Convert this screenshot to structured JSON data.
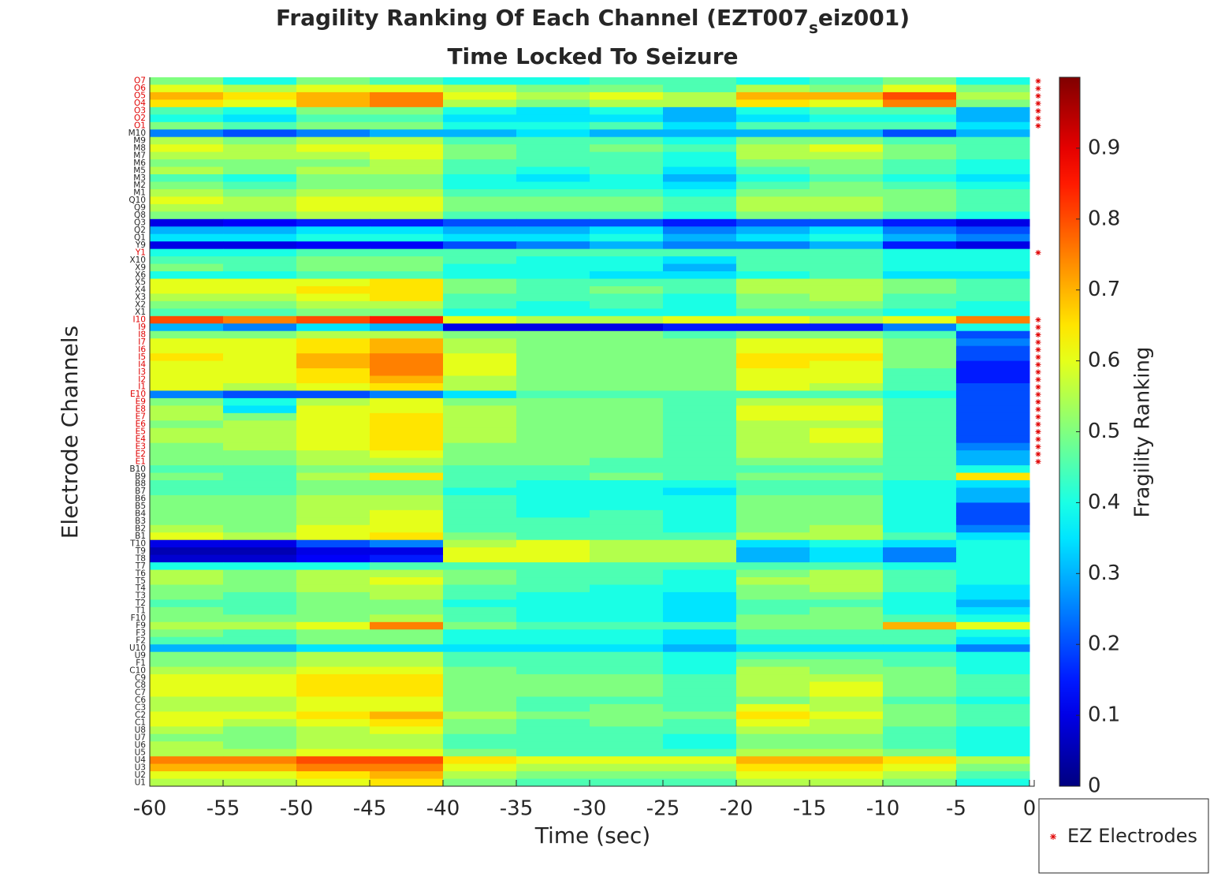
{
  "chart_data": {
    "type": "heatmap",
    "title": [
      "Fragility Ranking Of Each Channel (EZT007",
      "s",
      "eiz001)"
    ],
    "subtitle": "Time Locked To Seizure",
    "xlabel": "Time (sec)",
    "ylabel": "Electrode Channels",
    "colorbar_label": "Fragility Ranking",
    "legend_label": "EZ Electrodes",
    "colormap": "jet",
    "ez_color": "#e00000",
    "xlim": [
      -60,
      0
    ],
    "xticks": [
      -60,
      -55,
      -50,
      -45,
      -40,
      -35,
      -30,
      -25,
      -20,
      -15,
      -10,
      -5,
      0
    ],
    "x_bins": [
      -60,
      -55,
      -50,
      -45,
      -40,
      -35,
      -30,
      -25,
      -20,
      -15,
      -10,
      -5,
      0
    ],
    "zlim": [
      0,
      1
    ],
    "zticks": [
      0,
      0.1,
      0.2,
      0.3,
      0.4,
      0.5,
      0.6,
      0.7,
      0.8,
      0.9
    ],
    "y_categories": [
      "O7",
      "O6",
      "O5",
      "O4",
      "O3",
      "O2",
      "O1",
      "M10",
      "M9",
      "M8",
      "M7",
      "M6",
      "M5",
      "M3",
      "M2",
      "M1",
      "Q10",
      "Q9",
      "Q8",
      "Q3",
      "Q2",
      "Q1",
      "Y9",
      "Y1",
      "X10",
      "X9",
      "X6",
      "X5",
      "X4",
      "X3",
      "X2",
      "X1",
      "I10",
      "I9",
      "I8",
      "I7",
      "I6",
      "I5",
      "I4",
      "I3",
      "I2",
      "I1",
      "E10",
      "E9",
      "E8",
      "E7",
      "E6",
      "E5",
      "E4",
      "E3",
      "E2",
      "E1",
      "B10",
      "B9",
      "B8",
      "B7",
      "B6",
      "B5",
      "B4",
      "B3",
      "B2",
      "B1",
      "T10",
      "T9",
      "T8",
      "T7",
      "T6",
      "T5",
      "T4",
      "T3",
      "T2",
      "T1",
      "F10",
      "F9",
      "F3",
      "F2",
      "U10",
      "U9",
      "F1",
      "C10",
      "C9",
      "C8",
      "C7",
      "C6",
      "C3",
      "C2",
      "C1",
      "U8",
      "U7",
      "U6",
      "U5",
      "U4",
      "U3",
      "U2",
      "U1"
    ],
    "ez_electrodes": [
      "O7",
      "O6",
      "O5",
      "O4",
      "O3",
      "O2",
      "O1",
      "Y1",
      "I10",
      "I9",
      "I8",
      "I7",
      "I6",
      "I5",
      "I4",
      "I3",
      "I2",
      "I1",
      "E10",
      "E9",
      "E8",
      "E7",
      "E6",
      "E5",
      "E4",
      "E3",
      "E2",
      "E1"
    ],
    "z": [
      [
        0.5,
        0.4,
        0.5,
        0.45,
        0.4,
        0.4,
        0.45,
        0.45,
        0.4,
        0.45,
        0.5,
        0.4
      ],
      [
        0.6,
        0.55,
        0.6,
        0.6,
        0.55,
        0.5,
        0.5,
        0.45,
        0.55,
        0.5,
        0.6,
        0.5
      ],
      [
        0.7,
        0.65,
        0.7,
        0.75,
        0.6,
        0.55,
        0.6,
        0.55,
        0.7,
        0.7,
        0.8,
        0.55
      ],
      [
        0.65,
        0.6,
        0.7,
        0.75,
        0.55,
        0.5,
        0.55,
        0.55,
        0.65,
        0.6,
        0.75,
        0.5
      ],
      [
        0.45,
        0.4,
        0.5,
        0.5,
        0.4,
        0.35,
        0.4,
        0.3,
        0.4,
        0.45,
        0.45,
        0.3
      ],
      [
        0.4,
        0.35,
        0.45,
        0.45,
        0.35,
        0.35,
        0.35,
        0.3,
        0.35,
        0.4,
        0.4,
        0.3
      ],
      [
        0.5,
        0.45,
        0.5,
        0.5,
        0.4,
        0.4,
        0.45,
        0.35,
        0.45,
        0.45,
        0.45,
        0.35
      ],
      [
        0.25,
        0.2,
        0.25,
        0.3,
        0.3,
        0.35,
        0.3,
        0.3,
        0.3,
        0.3,
        0.2,
        0.3
      ],
      [
        0.55,
        0.5,
        0.55,
        0.55,
        0.45,
        0.45,
        0.45,
        0.4,
        0.5,
        0.5,
        0.45,
        0.45
      ],
      [
        0.6,
        0.55,
        0.6,
        0.6,
        0.5,
        0.45,
        0.5,
        0.45,
        0.55,
        0.6,
        0.5,
        0.45
      ],
      [
        0.55,
        0.55,
        0.55,
        0.6,
        0.5,
        0.45,
        0.45,
        0.4,
        0.55,
        0.55,
        0.5,
        0.45
      ],
      [
        0.5,
        0.5,
        0.5,
        0.55,
        0.45,
        0.45,
        0.45,
        0.4,
        0.5,
        0.5,
        0.45,
        0.4
      ],
      [
        0.55,
        0.5,
        0.55,
        0.55,
        0.45,
        0.4,
        0.45,
        0.35,
        0.45,
        0.5,
        0.45,
        0.4
      ],
      [
        0.45,
        0.4,
        0.5,
        0.5,
        0.4,
        0.35,
        0.4,
        0.3,
        0.4,
        0.45,
        0.4,
        0.35
      ],
      [
        0.5,
        0.45,
        0.5,
        0.5,
        0.4,
        0.4,
        0.4,
        0.35,
        0.45,
        0.5,
        0.45,
        0.4
      ],
      [
        0.55,
        0.5,
        0.55,
        0.55,
        0.45,
        0.45,
        0.45,
        0.4,
        0.5,
        0.5,
        0.5,
        0.45
      ],
      [
        0.6,
        0.55,
        0.6,
        0.6,
        0.5,
        0.5,
        0.5,
        0.45,
        0.55,
        0.55,
        0.5,
        0.45
      ],
      [
        0.55,
        0.55,
        0.6,
        0.6,
        0.5,
        0.5,
        0.5,
        0.45,
        0.55,
        0.55,
        0.5,
        0.45
      ],
      [
        0.5,
        0.5,
        0.55,
        0.55,
        0.45,
        0.45,
        0.45,
        0.4,
        0.5,
        0.5,
        0.45,
        0.4
      ],
      [
        0.1,
        0.12,
        0.15,
        0.15,
        0.2,
        0.2,
        0.2,
        0.15,
        0.2,
        0.2,
        0.15,
        0.1
      ],
      [
        0.3,
        0.3,
        0.35,
        0.35,
        0.3,
        0.3,
        0.35,
        0.25,
        0.3,
        0.35,
        0.25,
        0.2
      ],
      [
        0.35,
        0.35,
        0.4,
        0.4,
        0.35,
        0.35,
        0.4,
        0.3,
        0.35,
        0.4,
        0.3,
        0.25
      ],
      [
        0.1,
        0.1,
        0.12,
        0.12,
        0.2,
        0.25,
        0.3,
        0.25,
        0.25,
        0.3,
        0.15,
        0.1
      ],
      [
        0.4,
        0.4,
        0.45,
        0.45,
        0.45,
        0.45,
        0.45,
        0.45,
        0.45,
        0.45,
        0.4,
        0.4
      ],
      [
        0.45,
        0.45,
        0.5,
        0.5,
        0.45,
        0.4,
        0.4,
        0.35,
        0.45,
        0.45,
        0.4,
        0.4
      ],
      [
        0.5,
        0.45,
        0.5,
        0.5,
        0.4,
        0.4,
        0.4,
        0.3,
        0.45,
        0.45,
        0.4,
        0.4
      ],
      [
        0.4,
        0.4,
        0.45,
        0.45,
        0.4,
        0.4,
        0.35,
        0.35,
        0.4,
        0.45,
        0.35,
        0.35
      ],
      [
        0.6,
        0.6,
        0.6,
        0.65,
        0.5,
        0.45,
        0.45,
        0.45,
        0.55,
        0.55,
        0.5,
        0.45
      ],
      [
        0.6,
        0.6,
        0.65,
        0.65,
        0.5,
        0.45,
        0.5,
        0.45,
        0.55,
        0.55,
        0.5,
        0.45
      ],
      [
        0.55,
        0.55,
        0.6,
        0.65,
        0.45,
        0.45,
        0.45,
        0.4,
        0.5,
        0.55,
        0.45,
        0.45
      ],
      [
        0.5,
        0.5,
        0.55,
        0.55,
        0.45,
        0.4,
        0.45,
        0.4,
        0.5,
        0.5,
        0.45,
        0.4
      ],
      [
        0.45,
        0.45,
        0.5,
        0.5,
        0.4,
        0.4,
        0.4,
        0.4,
        0.45,
        0.45,
        0.4,
        0.4
      ],
      [
        0.8,
        0.75,
        0.8,
        0.85,
        0.6,
        0.55,
        0.55,
        0.6,
        0.6,
        0.55,
        0.6,
        0.75
      ],
      [
        0.3,
        0.25,
        0.35,
        0.3,
        0.1,
        0.1,
        0.1,
        0.15,
        0.15,
        0.15,
        0.25,
        0.4
      ],
      [
        0.5,
        0.5,
        0.55,
        0.55,
        0.5,
        0.5,
        0.5,
        0.45,
        0.5,
        0.5,
        0.45,
        0.2
      ],
      [
        0.6,
        0.6,
        0.65,
        0.7,
        0.55,
        0.5,
        0.5,
        0.5,
        0.6,
        0.6,
        0.5,
        0.25
      ],
      [
        0.6,
        0.6,
        0.65,
        0.7,
        0.55,
        0.5,
        0.5,
        0.5,
        0.6,
        0.6,
        0.5,
        0.2
      ],
      [
        0.65,
        0.6,
        0.7,
        0.75,
        0.6,
        0.5,
        0.5,
        0.5,
        0.65,
        0.65,
        0.5,
        0.2
      ],
      [
        0.6,
        0.6,
        0.7,
        0.75,
        0.6,
        0.5,
        0.5,
        0.5,
        0.65,
        0.6,
        0.5,
        0.15
      ],
      [
        0.6,
        0.6,
        0.65,
        0.75,
        0.6,
        0.5,
        0.5,
        0.5,
        0.6,
        0.6,
        0.45,
        0.15
      ],
      [
        0.6,
        0.6,
        0.65,
        0.7,
        0.55,
        0.5,
        0.5,
        0.5,
        0.6,
        0.6,
        0.45,
        0.15
      ],
      [
        0.6,
        0.55,
        0.6,
        0.65,
        0.55,
        0.5,
        0.5,
        0.5,
        0.6,
        0.55,
        0.45,
        0.2
      ],
      [
        0.25,
        0.2,
        0.2,
        0.25,
        0.35,
        0.45,
        0.45,
        0.45,
        0.45,
        0.45,
        0.4,
        0.2
      ],
      [
        0.5,
        0.4,
        0.55,
        0.6,
        0.5,
        0.5,
        0.5,
        0.45,
        0.55,
        0.55,
        0.45,
        0.2
      ],
      [
        0.55,
        0.35,
        0.6,
        0.6,
        0.55,
        0.5,
        0.5,
        0.45,
        0.6,
        0.6,
        0.45,
        0.2
      ],
      [
        0.55,
        0.5,
        0.6,
        0.65,
        0.55,
        0.5,
        0.5,
        0.45,
        0.6,
        0.6,
        0.45,
        0.2
      ],
      [
        0.5,
        0.55,
        0.6,
        0.65,
        0.55,
        0.5,
        0.5,
        0.45,
        0.55,
        0.55,
        0.45,
        0.2
      ],
      [
        0.55,
        0.55,
        0.6,
        0.65,
        0.55,
        0.5,
        0.5,
        0.45,
        0.55,
        0.6,
        0.45,
        0.2
      ],
      [
        0.55,
        0.55,
        0.6,
        0.65,
        0.55,
        0.5,
        0.5,
        0.45,
        0.55,
        0.6,
        0.45,
        0.2
      ],
      [
        0.5,
        0.55,
        0.6,
        0.65,
        0.5,
        0.5,
        0.5,
        0.45,
        0.55,
        0.55,
        0.45,
        0.25
      ],
      [
        0.5,
        0.5,
        0.55,
        0.6,
        0.5,
        0.5,
        0.5,
        0.45,
        0.55,
        0.55,
        0.45,
        0.3
      ],
      [
        0.5,
        0.5,
        0.55,
        0.55,
        0.5,
        0.5,
        0.45,
        0.45,
        0.5,
        0.5,
        0.45,
        0.3
      ],
      [
        0.45,
        0.45,
        0.5,
        0.5,
        0.45,
        0.45,
        0.45,
        0.45,
        0.45,
        0.45,
        0.45,
        0.4
      ],
      [
        0.5,
        0.45,
        0.55,
        0.65,
        0.45,
        0.45,
        0.5,
        0.45,
        0.5,
        0.5,
        0.45,
        0.65
      ],
      [
        0.45,
        0.45,
        0.5,
        0.5,
        0.45,
        0.4,
        0.4,
        0.4,
        0.45,
        0.45,
        0.4,
        0.35
      ],
      [
        0.45,
        0.45,
        0.5,
        0.5,
        0.4,
        0.4,
        0.4,
        0.35,
        0.45,
        0.45,
        0.4,
        0.3
      ],
      [
        0.5,
        0.5,
        0.55,
        0.55,
        0.45,
        0.4,
        0.4,
        0.4,
        0.5,
        0.5,
        0.4,
        0.3
      ],
      [
        0.5,
        0.5,
        0.55,
        0.55,
        0.45,
        0.4,
        0.4,
        0.4,
        0.5,
        0.5,
        0.4,
        0.2
      ],
      [
        0.5,
        0.5,
        0.55,
        0.6,
        0.45,
        0.4,
        0.45,
        0.4,
        0.5,
        0.5,
        0.4,
        0.2
      ],
      [
        0.5,
        0.5,
        0.55,
        0.6,
        0.45,
        0.45,
        0.45,
        0.4,
        0.5,
        0.5,
        0.4,
        0.2
      ],
      [
        0.55,
        0.5,
        0.6,
        0.6,
        0.45,
        0.45,
        0.45,
        0.4,
        0.5,
        0.55,
        0.4,
        0.25
      ],
      [
        0.6,
        0.55,
        0.6,
        0.65,
        0.5,
        0.45,
        0.45,
        0.45,
        0.55,
        0.55,
        0.45,
        0.35
      ],
      [
        0.1,
        0.1,
        0.2,
        0.25,
        0.55,
        0.6,
        0.55,
        0.55,
        0.35,
        0.4,
        0.35,
        0.4
      ],
      [
        0.05,
        0.05,
        0.1,
        0.1,
        0.6,
        0.6,
        0.55,
        0.55,
        0.3,
        0.35,
        0.25,
        0.4
      ],
      [
        0.08,
        0.08,
        0.12,
        0.15,
        0.6,
        0.6,
        0.55,
        0.55,
        0.3,
        0.35,
        0.25,
        0.4
      ],
      [
        0.4,
        0.4,
        0.4,
        0.45,
        0.45,
        0.45,
        0.45,
        0.45,
        0.45,
        0.45,
        0.4,
        0.4
      ],
      [
        0.55,
        0.5,
        0.55,
        0.55,
        0.5,
        0.45,
        0.45,
        0.4,
        0.5,
        0.55,
        0.45,
        0.4
      ],
      [
        0.55,
        0.5,
        0.55,
        0.6,
        0.5,
        0.45,
        0.45,
        0.4,
        0.55,
        0.55,
        0.45,
        0.4
      ],
      [
        0.5,
        0.5,
        0.55,
        0.55,
        0.45,
        0.45,
        0.4,
        0.4,
        0.5,
        0.55,
        0.45,
        0.35
      ],
      [
        0.5,
        0.45,
        0.5,
        0.55,
        0.45,
        0.4,
        0.4,
        0.35,
        0.5,
        0.5,
        0.4,
        0.35
      ],
      [
        0.45,
        0.45,
        0.5,
        0.5,
        0.4,
        0.4,
        0.4,
        0.35,
        0.45,
        0.45,
        0.4,
        0.3
      ],
      [
        0.5,
        0.45,
        0.5,
        0.5,
        0.45,
        0.4,
        0.4,
        0.35,
        0.45,
        0.5,
        0.4,
        0.35
      ],
      [
        0.5,
        0.5,
        0.5,
        0.55,
        0.45,
        0.4,
        0.4,
        0.35,
        0.5,
        0.5,
        0.45,
        0.4
      ],
      [
        0.55,
        0.55,
        0.6,
        0.75,
        0.5,
        0.45,
        0.45,
        0.45,
        0.5,
        0.5,
        0.7,
        0.6
      ],
      [
        0.5,
        0.45,
        0.5,
        0.5,
        0.4,
        0.4,
        0.4,
        0.35,
        0.45,
        0.45,
        0.45,
        0.4
      ],
      [
        0.45,
        0.45,
        0.5,
        0.5,
        0.4,
        0.4,
        0.4,
        0.35,
        0.45,
        0.45,
        0.45,
        0.35
      ],
      [
        0.3,
        0.3,
        0.35,
        0.35,
        0.35,
        0.35,
        0.35,
        0.3,
        0.35,
        0.35,
        0.35,
        0.25
      ],
      [
        0.5,
        0.5,
        0.55,
        0.55,
        0.45,
        0.45,
        0.45,
        0.4,
        0.45,
        0.45,
        0.45,
        0.4
      ],
      [
        0.5,
        0.5,
        0.55,
        0.55,
        0.45,
        0.45,
        0.45,
        0.4,
        0.5,
        0.5,
        0.45,
        0.4
      ],
      [
        0.55,
        0.55,
        0.6,
        0.6,
        0.5,
        0.45,
        0.45,
        0.4,
        0.55,
        0.5,
        0.5,
        0.4
      ],
      [
        0.6,
        0.6,
        0.65,
        0.65,
        0.5,
        0.5,
        0.5,
        0.45,
        0.55,
        0.55,
        0.5,
        0.45
      ],
      [
        0.6,
        0.6,
        0.65,
        0.65,
        0.5,
        0.5,
        0.5,
        0.45,
        0.55,
        0.6,
        0.5,
        0.45
      ],
      [
        0.6,
        0.6,
        0.65,
        0.65,
        0.5,
        0.5,
        0.5,
        0.45,
        0.55,
        0.6,
        0.5,
        0.45
      ],
      [
        0.55,
        0.55,
        0.6,
        0.6,
        0.5,
        0.45,
        0.45,
        0.45,
        0.5,
        0.55,
        0.45,
        0.4
      ],
      [
        0.55,
        0.55,
        0.6,
        0.6,
        0.5,
        0.45,
        0.5,
        0.45,
        0.6,
        0.55,
        0.5,
        0.45
      ],
      [
        0.6,
        0.6,
        0.65,
        0.7,
        0.55,
        0.5,
        0.5,
        0.5,
        0.65,
        0.6,
        0.5,
        0.45
      ],
      [
        0.6,
        0.55,
        0.6,
        0.65,
        0.5,
        0.45,
        0.5,
        0.45,
        0.6,
        0.55,
        0.5,
        0.45
      ],
      [
        0.55,
        0.5,
        0.55,
        0.6,
        0.5,
        0.45,
        0.45,
        0.45,
        0.55,
        0.55,
        0.45,
        0.4
      ],
      [
        0.5,
        0.5,
        0.55,
        0.55,
        0.45,
        0.45,
        0.45,
        0.4,
        0.5,
        0.5,
        0.45,
        0.4
      ],
      [
        0.55,
        0.5,
        0.55,
        0.55,
        0.45,
        0.45,
        0.45,
        0.4,
        0.5,
        0.5,
        0.45,
        0.4
      ],
      [
        0.55,
        0.55,
        0.6,
        0.6,
        0.5,
        0.45,
        0.45,
        0.45,
        0.55,
        0.55,
        0.5,
        0.4
      ],
      [
        0.75,
        0.75,
        0.8,
        0.8,
        0.65,
        0.6,
        0.6,
        0.6,
        0.7,
        0.7,
        0.65,
        0.55
      ],
      [
        0.7,
        0.7,
        0.75,
        0.75,
        0.6,
        0.55,
        0.55,
        0.55,
        0.65,
        0.65,
        0.6,
        0.5
      ],
      [
        0.6,
        0.6,
        0.65,
        0.7,
        0.55,
        0.5,
        0.5,
        0.5,
        0.6,
        0.6,
        0.55,
        0.45
      ],
      [
        0.55,
        0.55,
        0.6,
        0.65,
        0.5,
        0.45,
        0.45,
        0.45,
        0.55,
        0.55,
        0.5,
        0.4
      ]
    ]
  }
}
